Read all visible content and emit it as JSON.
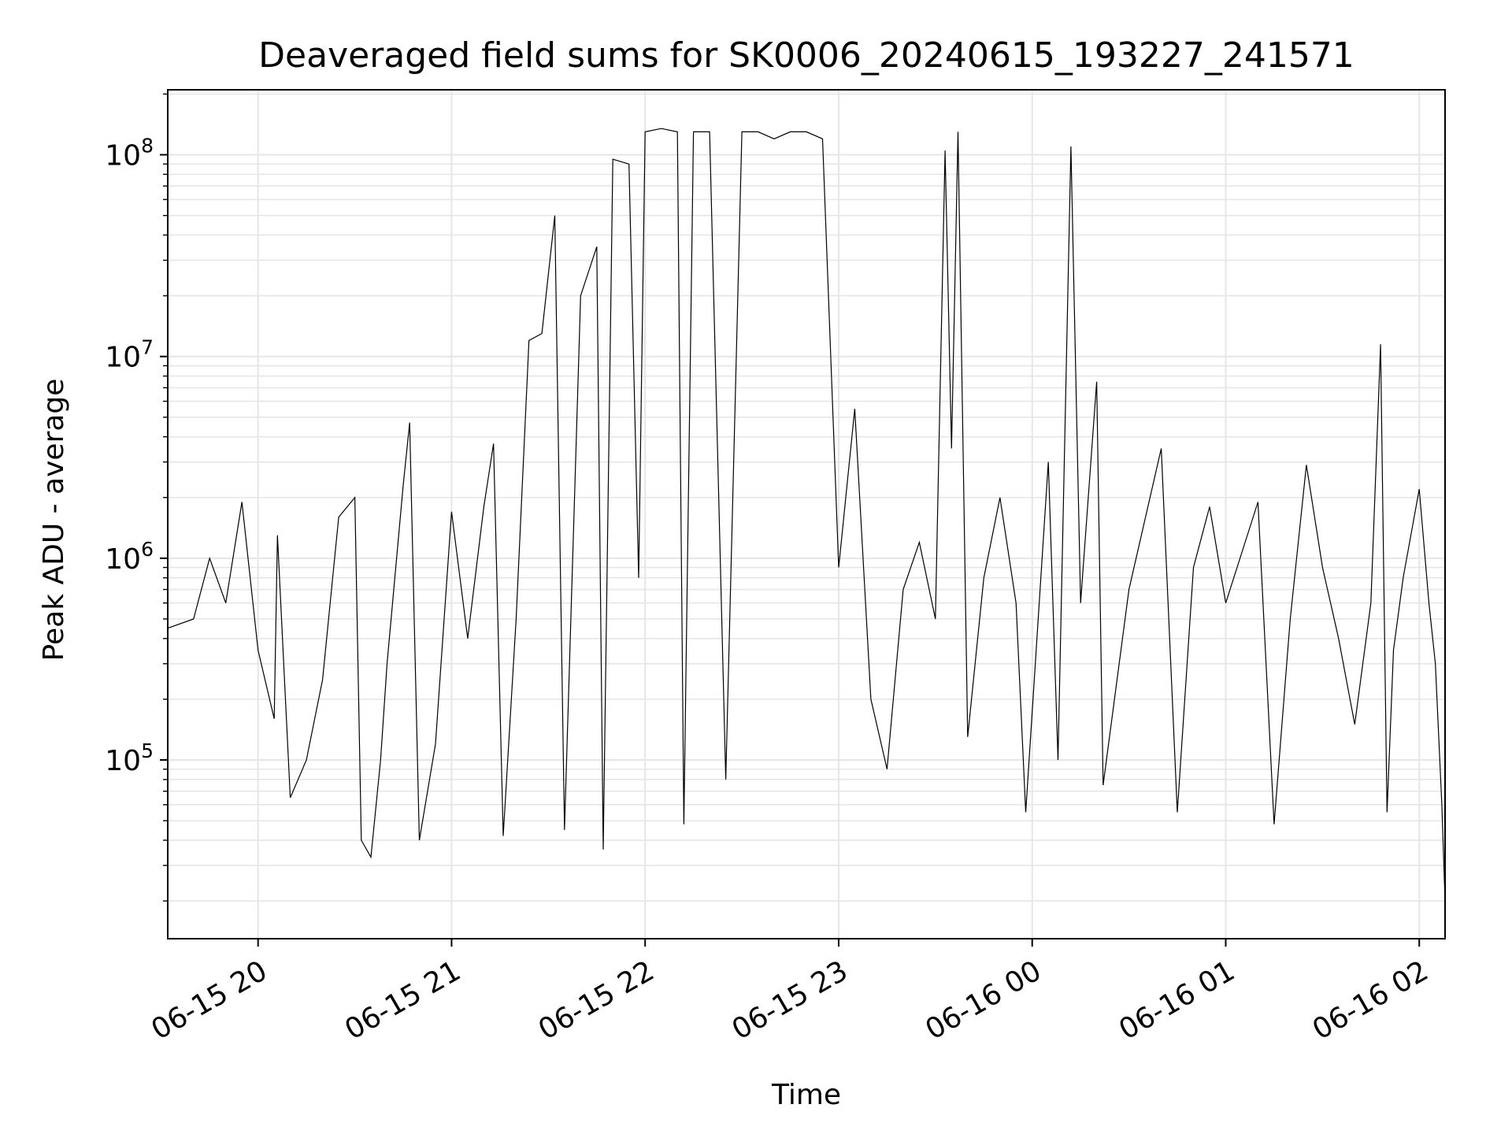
{
  "chart_data": {
    "type": "line",
    "title": "Deaveraged field sums for SK0006_20240615_193227_241571",
    "xlabel": "Time",
    "ylabel": "Peak ADU - average",
    "yscale": "log",
    "xlim": [
      "2024-06-15 19:32",
      "2024-06-16 02:08"
    ],
    "ylim": [
      13000,
      210000000
    ],
    "x_ticks": [
      "06-15 20",
      "06-15 21",
      "06-15 22",
      "06-15 23",
      "06-16 00",
      "06-16 01",
      "06-16 02"
    ],
    "x_tick_times": [
      "2024-06-15 20:00",
      "2024-06-15 21:00",
      "2024-06-15 22:00",
      "2024-06-15 23:00",
      "2024-06-16 00:00",
      "2024-06-16 01:00",
      "2024-06-16 02:00"
    ],
    "y_ticks": [
      {
        "value": 100000,
        "base": "10",
        "exp": "5"
      },
      {
        "value": 1000000,
        "base": "10",
        "exp": "6"
      },
      {
        "value": 10000000,
        "base": "10",
        "exp": "7"
      },
      {
        "value": 100000000,
        "base": "10",
        "exp": "8"
      }
    ],
    "grid": true,
    "line_color": "#000000",
    "series": [
      {
        "name": "",
        "points": [
          [
            "2024-06-15 19:32",
            450000
          ],
          [
            "2024-06-15 19:40",
            500000
          ],
          [
            "2024-06-15 19:45",
            1000000
          ],
          [
            "2024-06-15 19:50",
            600000
          ],
          [
            "2024-06-15 19:55",
            1900000
          ],
          [
            "2024-06-15 20:00",
            350000
          ],
          [
            "2024-06-15 20:05",
            160000
          ],
          [
            "2024-06-15 20:06",
            1300000
          ],
          [
            "2024-06-15 20:10",
            65000
          ],
          [
            "2024-06-15 20:15",
            100000
          ],
          [
            "2024-06-15 20:20",
            250000
          ],
          [
            "2024-06-15 20:25",
            1600000
          ],
          [
            "2024-06-15 20:30",
            2000000
          ],
          [
            "2024-06-15 20:32",
            40000
          ],
          [
            "2024-06-15 20:35",
            33000
          ],
          [
            "2024-06-15 20:38",
            100000
          ],
          [
            "2024-06-15 20:40",
            300000
          ],
          [
            "2024-06-15 20:45",
            2300000
          ],
          [
            "2024-06-15 20:47",
            4700000
          ],
          [
            "2024-06-15 20:50",
            40000
          ],
          [
            "2024-06-15 20:55",
            120000
          ],
          [
            "2024-06-15 21:00",
            1700000
          ],
          [
            "2024-06-15 21:05",
            400000
          ],
          [
            "2024-06-15 21:10",
            1800000
          ],
          [
            "2024-06-15 21:13",
            3700000
          ],
          [
            "2024-06-15 21:16",
            42000
          ],
          [
            "2024-06-15 21:20",
            500000
          ],
          [
            "2024-06-15 21:24",
            12000000
          ],
          [
            "2024-06-15 21:28",
            13000000
          ],
          [
            "2024-06-15 21:32",
            50000000
          ],
          [
            "2024-06-15 21:35",
            45000
          ],
          [
            "2024-06-15 21:40",
            20000000
          ],
          [
            "2024-06-15 21:45",
            35000000
          ],
          [
            "2024-06-15 21:47",
            36000
          ],
          [
            "2024-06-15 21:50",
            95000000
          ],
          [
            "2024-06-15 21:55",
            90000000
          ],
          [
            "2024-06-15 21:58",
            800000
          ],
          [
            "2024-06-15 22:00",
            130000000
          ],
          [
            "2024-06-15 22:05",
            135000000
          ],
          [
            "2024-06-15 22:10",
            130000000
          ],
          [
            "2024-06-15 22:12",
            48000
          ],
          [
            "2024-06-15 22:15",
            130000000
          ],
          [
            "2024-06-15 22:20",
            130000000
          ],
          [
            "2024-06-15 22:25",
            80000
          ],
          [
            "2024-06-15 22:30",
            130000000
          ],
          [
            "2024-06-15 22:35",
            130000000
          ],
          [
            "2024-06-15 22:40",
            120000000
          ],
          [
            "2024-06-15 22:45",
            130000000
          ],
          [
            "2024-06-15 22:50",
            130000000
          ],
          [
            "2024-06-15 22:55",
            120000000
          ],
          [
            "2024-06-15 23:00",
            900000
          ],
          [
            "2024-06-15 23:05",
            5500000
          ],
          [
            "2024-06-15 23:10",
            200000
          ],
          [
            "2024-06-15 23:15",
            90000
          ],
          [
            "2024-06-15 23:20",
            700000
          ],
          [
            "2024-06-15 23:25",
            1200000
          ],
          [
            "2024-06-15 23:30",
            500000
          ],
          [
            "2024-06-15 23:33",
            105000000
          ],
          [
            "2024-06-15 23:35",
            3500000
          ],
          [
            "2024-06-15 23:37",
            130000000
          ],
          [
            "2024-06-15 23:40",
            130000
          ],
          [
            "2024-06-15 23:45",
            800000
          ],
          [
            "2024-06-15 23:50",
            2000000
          ],
          [
            "2024-06-15 23:55",
            600000
          ],
          [
            "2024-06-15 23:58",
            55000
          ],
          [
            "2024-06-16 00:05",
            3000000
          ],
          [
            "2024-06-16 00:08",
            100000
          ],
          [
            "2024-06-16 00:12",
            110000000
          ],
          [
            "2024-06-16 00:15",
            600000
          ],
          [
            "2024-06-16 00:20",
            7500000
          ],
          [
            "2024-06-16 00:22",
            75000
          ],
          [
            "2024-06-16 00:30",
            700000
          ],
          [
            "2024-06-16 00:40",
            3500000
          ],
          [
            "2024-06-16 00:45",
            55000
          ],
          [
            "2024-06-16 00:50",
            900000
          ],
          [
            "2024-06-16 00:55",
            1800000
          ],
          [
            "2024-06-16 01:00",
            600000
          ],
          [
            "2024-06-16 01:10",
            1900000
          ],
          [
            "2024-06-16 01:15",
            48000
          ],
          [
            "2024-06-16 01:20",
            500000
          ],
          [
            "2024-06-16 01:25",
            2900000
          ],
          [
            "2024-06-16 01:30",
            900000
          ],
          [
            "2024-06-16 01:35",
            400000
          ],
          [
            "2024-06-16 01:40",
            150000
          ],
          [
            "2024-06-16 01:45",
            600000
          ],
          [
            "2024-06-16 01:48",
            11500000
          ],
          [
            "2024-06-16 01:50",
            55000
          ],
          [
            "2024-06-16 01:52",
            350000
          ],
          [
            "2024-06-16 01:55",
            800000
          ],
          [
            "2024-06-16 02:00",
            2200000
          ],
          [
            "2024-06-16 02:03",
            600000
          ],
          [
            "2024-06-16 02:05",
            300000
          ],
          [
            "2024-06-16 02:07",
            60000
          ],
          [
            "2024-06-16 02:08",
            20000
          ]
        ]
      }
    ]
  }
}
